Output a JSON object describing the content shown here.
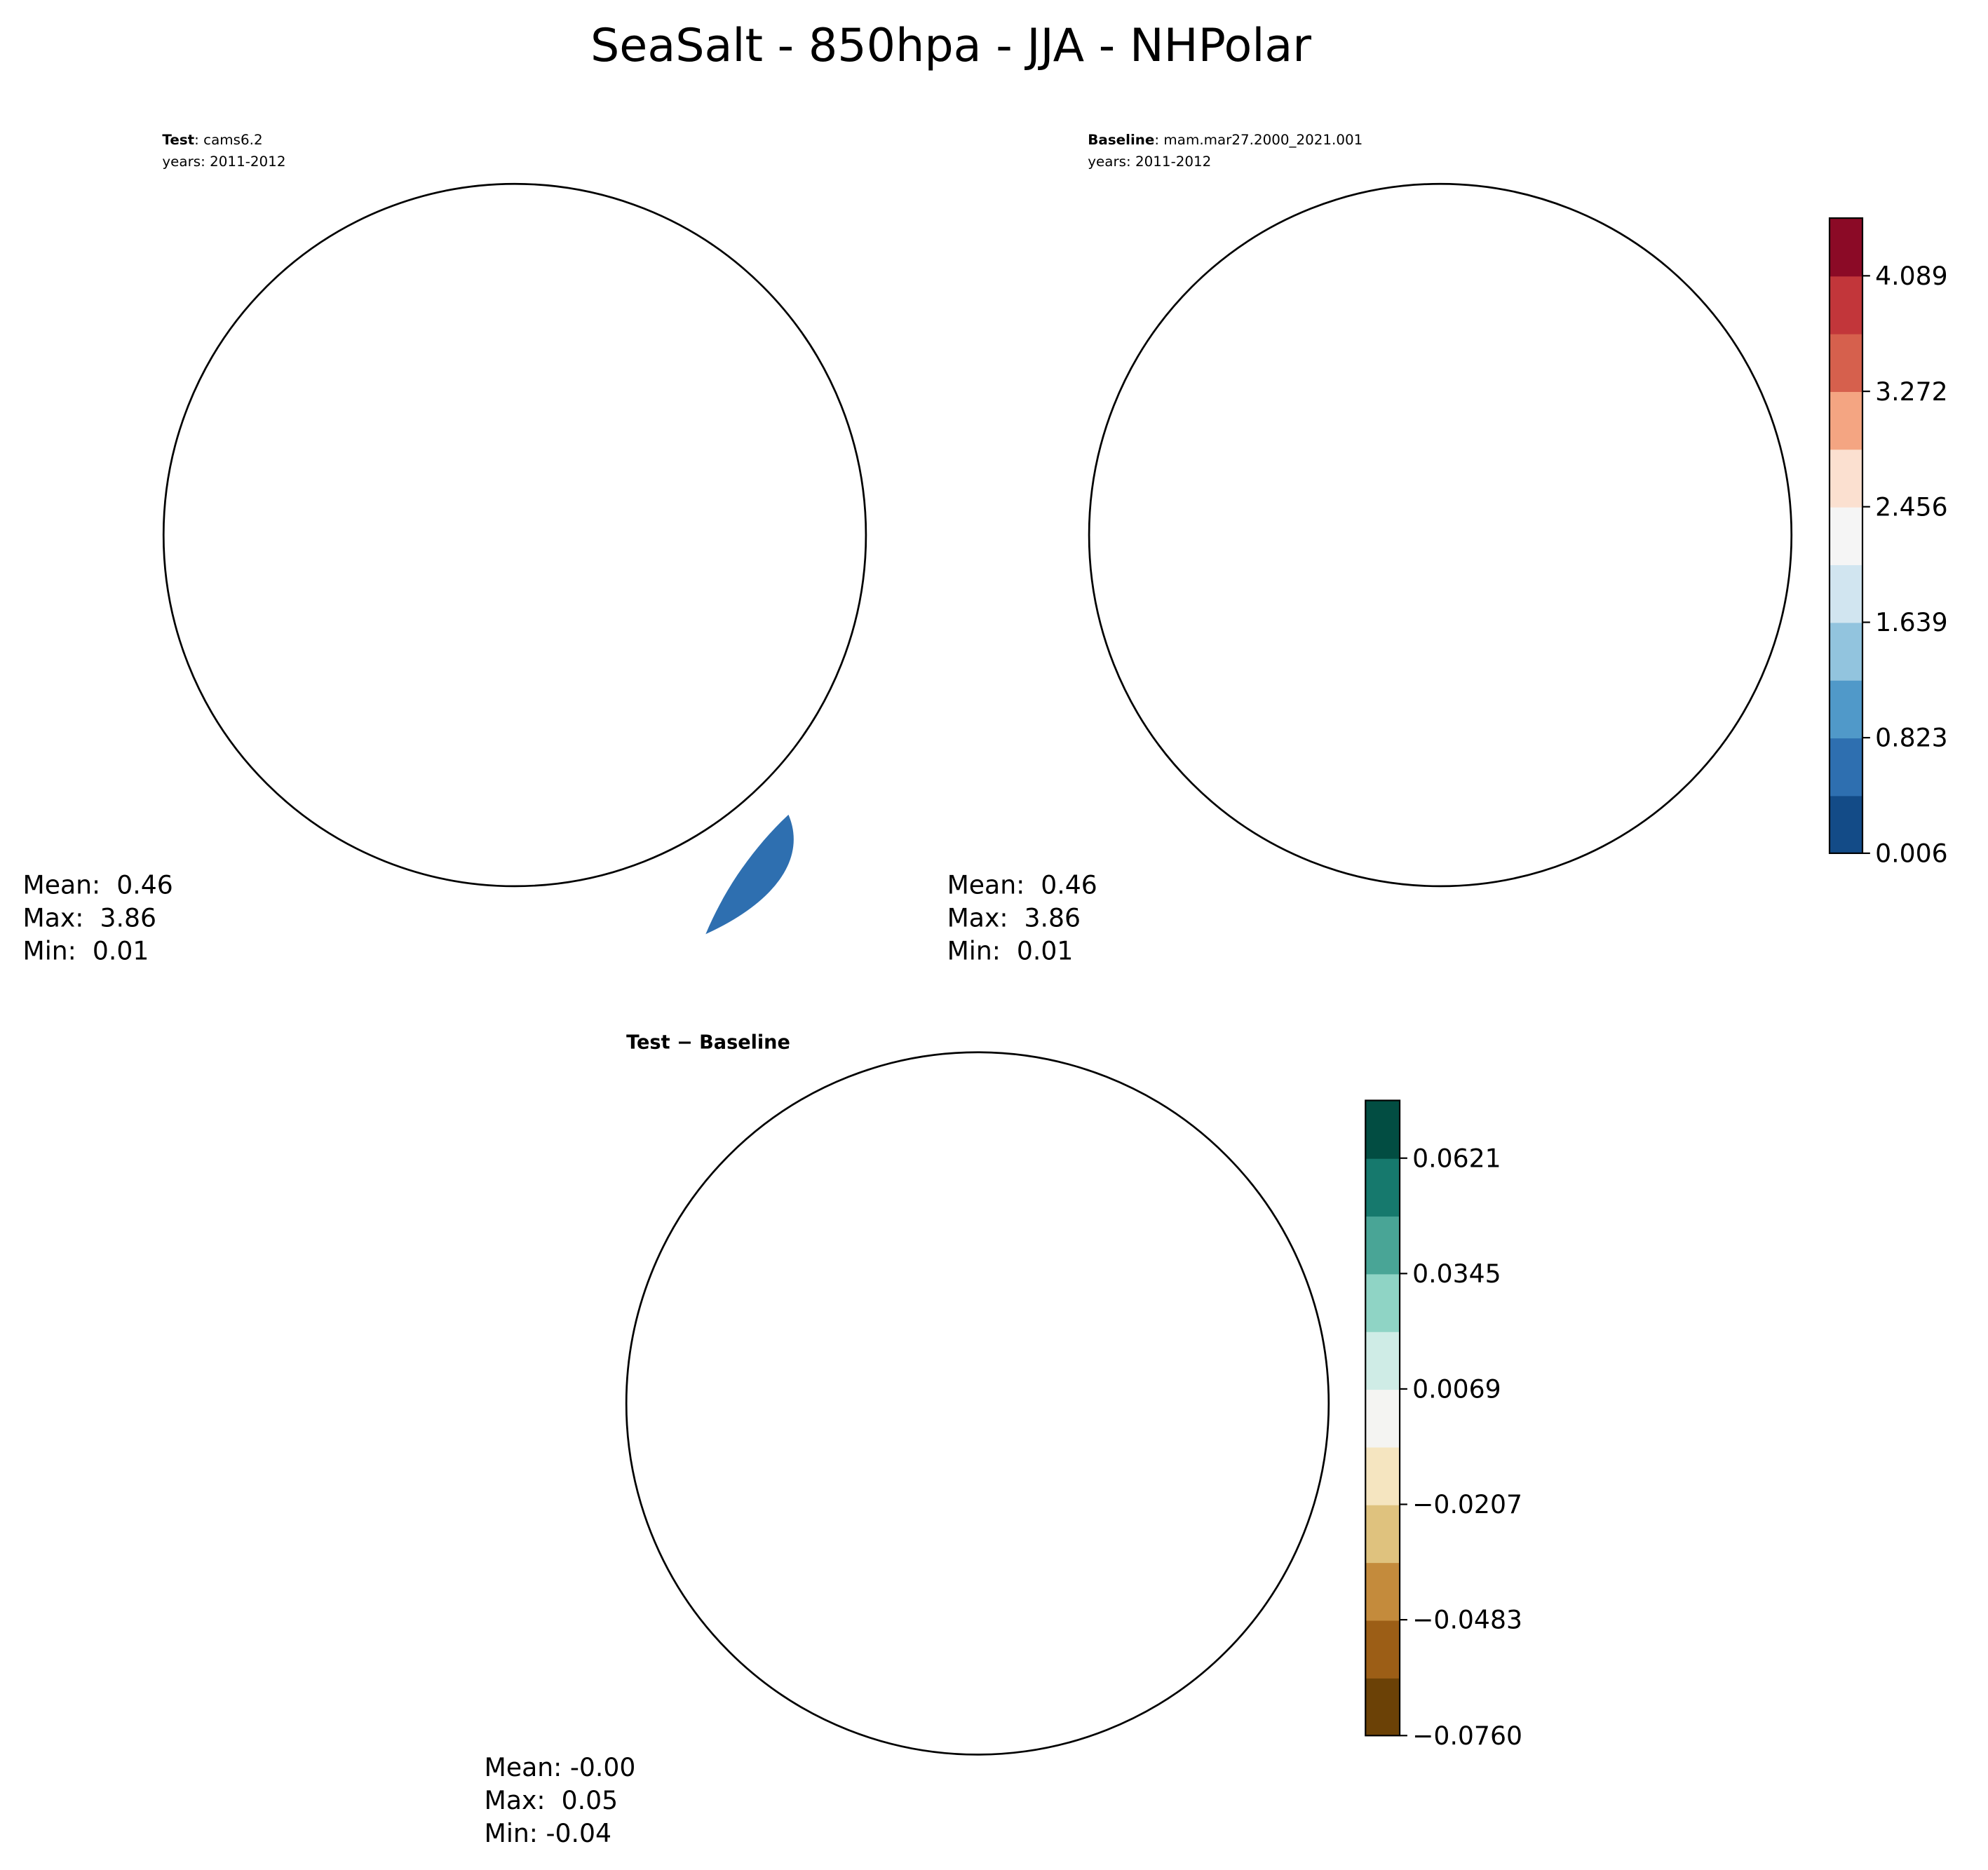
{
  "title": "SeaSalt - 850hpa - JJA - NHPolar",
  "panels": [
    {
      "label": "Test",
      "info": ": cams6.2",
      "years": "years: 2011-2012",
      "stats": [
        "Mean:  0.46",
        "Max:  3.86",
        "Min:  0.01"
      ]
    },
    {
      "label": "Baseline",
      "info": ": mam.mar27.2000_2021.001",
      "years": "years: 2011-2012",
      "stats": [
        "Mean:  0.46",
        "Max:  3.86",
        "Min:  0.01"
      ]
    },
    {
      "label": "Test − Baseline",
      "stats": [
        "Mean: -0.00",
        "Max:  0.05",
        "Min: -0.04"
      ]
    }
  ],
  "chart_data": [
    {
      "type": "colorbar",
      "ylim": [
        0.006,
        4.497
      ],
      "yticks": [
        0.006,
        0.823,
        1.639,
        2.456,
        3.272,
        4.089
      ],
      "colors": [
        "#134b87",
        "#2e6fb0",
        "#5099c9",
        "#92c4de",
        "#d1e5f0",
        "#f5f5f5",
        "#fbe0d0",
        "#f4a582",
        "#d6604d",
        "#c2363a",
        "#8b0a26"
      ]
    },
    {
      "type": "colorbar",
      "ylim": [
        -0.076,
        0.0759
      ],
      "yticks": [
        {
          "value": -0.076,
          "label": "−0.0760"
        },
        {
          "value": -0.0483,
          "label": "−0.0483"
        },
        {
          "value": -0.0207,
          "label": "−0.0207"
        },
        0.0069,
        0.0345,
        0.0621
      ],
      "colors": [
        "#6b4106",
        "#9c5e16",
        "#c48b3c",
        "#dfc27e",
        "#f5e5c0",
        "#f4f4f2",
        "#cfece6",
        "#8fd4c5",
        "#49a596",
        "#16796d",
        "#024d42"
      ]
    }
  ]
}
